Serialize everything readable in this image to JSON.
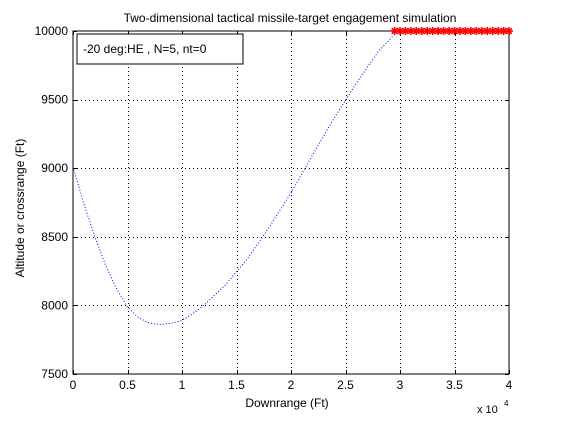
{
  "chart_data": {
    "type": "line",
    "title": "Two-dimensional tactical missile-target engagement simulation",
    "xlabel": "Downrange (Ft)",
    "ylabel": "Altitude or crossrange (Ft)",
    "x_multiplier_label": "x 10",
    "x_multiplier_exponent": "4",
    "xlim": [
      0,
      40000
    ],
    "ylim": [
      7500,
      10000
    ],
    "grid": true,
    "x_ticks": [
      0,
      5000,
      10000,
      15000,
      20000,
      25000,
      30000,
      35000,
      40000
    ],
    "x_tick_labels": [
      "0",
      "0.5",
      "1",
      "1.5",
      "2",
      "2.5",
      "3",
      "3.5",
      "4"
    ],
    "y_ticks": [
      7500,
      8000,
      8500,
      9000,
      9500,
      10000
    ],
    "y_tick_labels": [
      "7500",
      "8000",
      "8500",
      "9000",
      "9500",
      "10000"
    ],
    "legend": {
      "placement": "top-left",
      "text": "-20 deg:HE , N=5, nt=0"
    },
    "series": [
      {
        "style": "dotted",
        "color": "#0000ff",
        "x": [
          0,
          1000,
          2000,
          3000,
          4000,
          5000,
          6000,
          7000,
          8000,
          9000,
          10000,
          11000,
          12000,
          14000,
          16000,
          18000,
          20000,
          22000,
          24000,
          26000,
          28000,
          29800
        ],
        "y": [
          9010,
          8740,
          8500,
          8290,
          8120,
          7990,
          7910,
          7870,
          7860,
          7870,
          7890,
          7940,
          8000,
          8150,
          8340,
          8570,
          8820,
          9100,
          9370,
          9620,
          9850,
          10000
        ]
      },
      {
        "style": "markers",
        "marker": "asterisk",
        "color": "#ff0000",
        "x": [
          29500,
          30000,
          30500,
          31000,
          31500,
          32000,
          32500,
          33000,
          33500,
          34000,
          34500,
          35000,
          35500,
          36000,
          36500,
          37000,
          37500,
          38000,
          38500,
          39000,
          39500,
          40000
        ],
        "y": [
          10000,
          10000,
          10000,
          10000,
          10000,
          10000,
          10000,
          10000,
          10000,
          10000,
          10000,
          10000,
          10000,
          10000,
          10000,
          10000,
          10000,
          10000,
          10000,
          10000,
          10000,
          10000
        ]
      }
    ]
  }
}
